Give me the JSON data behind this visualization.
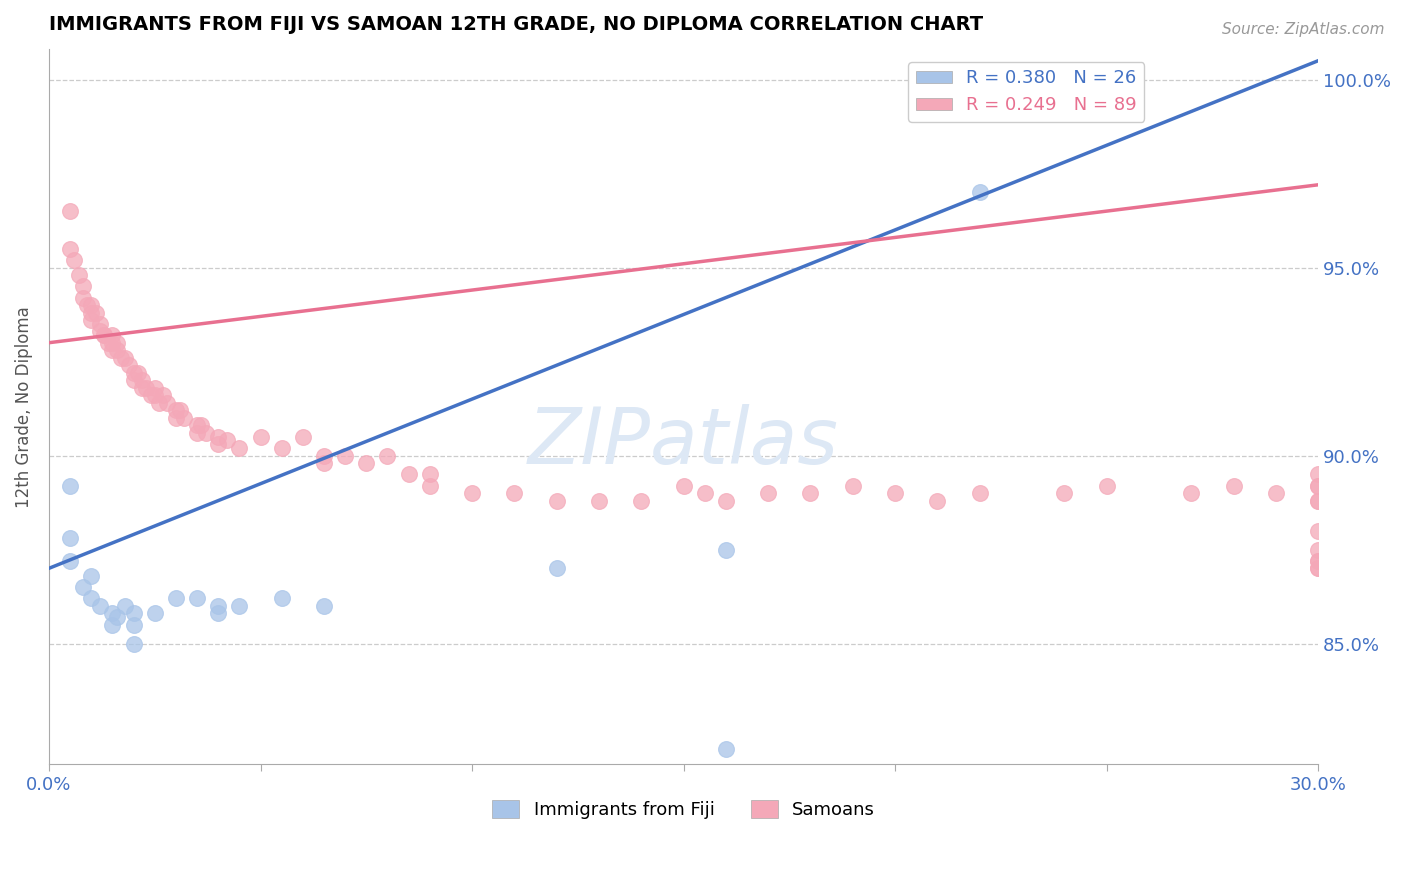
{
  "title": "IMMIGRANTS FROM FIJI VS SAMOAN 12TH GRADE, NO DIPLOMA CORRELATION CHART",
  "source_text": "Source: ZipAtlas.com",
  "ylabel": "12th Grade, No Diploma",
  "xlim": [
    0.0,
    0.3
  ],
  "ylim": [
    0.818,
    1.008
  ],
  "yticks": [
    0.85,
    0.9,
    0.95,
    1.0
  ],
  "ytick_labels": [
    "85.0%",
    "90.0%",
    "95.0%",
    "100.0%"
  ],
  "xticks": [
    0.0,
    0.05,
    0.1,
    0.15,
    0.2,
    0.25,
    0.3
  ],
  "fiji_color": "#a8c4e8",
  "samoan_color": "#f4a8b8",
  "fiji_line_color": "#4472c4",
  "samoan_line_color": "#e87090",
  "R_fiji": 0.38,
  "N_fiji": 26,
  "R_samoan": 0.249,
  "N_samoan": 89,
  "background_color": "#ffffff",
  "grid_color": "#cccccc",
  "axis_label_color": "#4472c4",
  "title_color": "#000000",
  "fiji_scatter_x": [
    0.005,
    0.005,
    0.005,
    0.008,
    0.01,
    0.01,
    0.012,
    0.015,
    0.015,
    0.016,
    0.018,
    0.02,
    0.02,
    0.02,
    0.025,
    0.03,
    0.035,
    0.04,
    0.04,
    0.045,
    0.055,
    0.065,
    0.12,
    0.16,
    0.16,
    0.22
  ],
  "fiji_scatter_y": [
    0.892,
    0.878,
    0.872,
    0.865,
    0.868,
    0.862,
    0.86,
    0.858,
    0.855,
    0.857,
    0.86,
    0.858,
    0.855,
    0.85,
    0.858,
    0.862,
    0.862,
    0.86,
    0.858,
    0.86,
    0.862,
    0.86,
    0.87,
    0.875,
    0.822,
    0.97
  ],
  "samoan_scatter_x": [
    0.005,
    0.005,
    0.006,
    0.007,
    0.008,
    0.008,
    0.009,
    0.01,
    0.01,
    0.01,
    0.011,
    0.012,
    0.012,
    0.013,
    0.013,
    0.014,
    0.015,
    0.015,
    0.015,
    0.016,
    0.016,
    0.017,
    0.018,
    0.019,
    0.02,
    0.02,
    0.021,
    0.022,
    0.022,
    0.023,
    0.024,
    0.025,
    0.025,
    0.026,
    0.027,
    0.028,
    0.03,
    0.03,
    0.031,
    0.032,
    0.035,
    0.035,
    0.036,
    0.037,
    0.04,
    0.04,
    0.042,
    0.045,
    0.05,
    0.055,
    0.06,
    0.065,
    0.065,
    0.07,
    0.075,
    0.08,
    0.085,
    0.09,
    0.09,
    0.1,
    0.11,
    0.12,
    0.13,
    0.14,
    0.15,
    0.155,
    0.16,
    0.17,
    0.18,
    0.19,
    0.2,
    0.21,
    0.22,
    0.24,
    0.25,
    0.27,
    0.28,
    0.29,
    0.3,
    0.3,
    0.3,
    0.3,
    0.3,
    0.3,
    0.3,
    0.3,
    0.3,
    0.3,
    0.3
  ],
  "samoan_scatter_y": [
    0.955,
    0.965,
    0.952,
    0.948,
    0.945,
    0.942,
    0.94,
    0.94,
    0.938,
    0.936,
    0.938,
    0.935,
    0.933,
    0.932,
    0.932,
    0.93,
    0.932,
    0.93,
    0.928,
    0.93,
    0.928,
    0.926,
    0.926,
    0.924,
    0.922,
    0.92,
    0.922,
    0.92,
    0.918,
    0.918,
    0.916,
    0.918,
    0.916,
    0.914,
    0.916,
    0.914,
    0.912,
    0.91,
    0.912,
    0.91,
    0.908,
    0.906,
    0.908,
    0.906,
    0.905,
    0.903,
    0.904,
    0.902,
    0.905,
    0.902,
    0.905,
    0.9,
    0.898,
    0.9,
    0.898,
    0.9,
    0.895,
    0.895,
    0.892,
    0.89,
    0.89,
    0.888,
    0.888,
    0.888,
    0.892,
    0.89,
    0.888,
    0.89,
    0.89,
    0.892,
    0.89,
    0.888,
    0.89,
    0.89,
    0.892,
    0.89,
    0.892,
    0.89,
    0.888,
    0.892,
    0.895,
    0.892,
    0.888,
    0.88,
    0.875,
    0.872,
    0.87,
    0.872,
    0.87
  ]
}
